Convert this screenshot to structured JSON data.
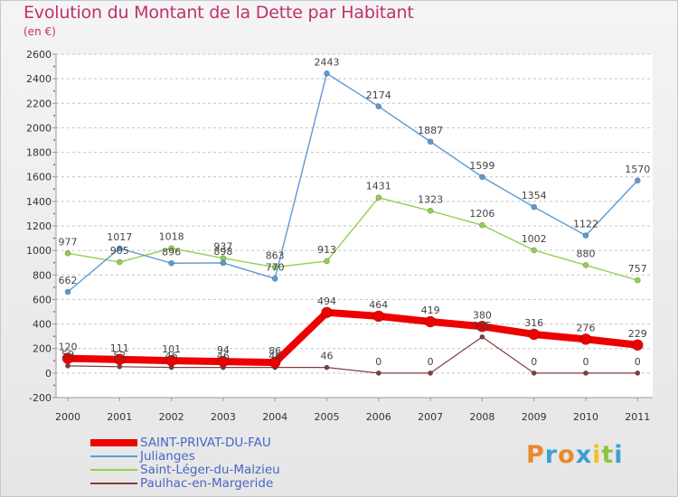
{
  "header": {
    "title": "Evolution du Montant de la Dette par Habitant",
    "unit": "(en €)"
  },
  "brand": {
    "logo_text": "Proxiti",
    "letter_colors": [
      "#e8892a",
      "#3ba0d8",
      "#e8892a",
      "#3ba0d8",
      "#f2c21a",
      "#8bc53f",
      "#3ba0d8"
    ]
  },
  "chart_data": {
    "type": "line",
    "title": "Evolution du Montant de la Dette par Habitant",
    "subtitle": "(en €)",
    "xlabel": "",
    "ylabel": "",
    "x": [
      "2000",
      "2001",
      "2002",
      "2003",
      "2004",
      "2005",
      "2006",
      "2007",
      "2008",
      "2009",
      "2010",
      "2011"
    ],
    "ylim": [
      -200,
      2600
    ],
    "yticks": [
      "-200",
      "0",
      "200",
      "400",
      "600",
      "800",
      "1000",
      "1200",
      "1400",
      "1600",
      "1800",
      "2000",
      "2200",
      "2400",
      "2600"
    ],
    "grid": "horizontal dashed",
    "legend_position": "bottom-left",
    "series": [
      {
        "name": "SAINT-PRIVAT-DU-FAU",
        "color": "#ee0000",
        "values": [
          120,
          111,
          101,
          94,
          86,
          494,
          464,
          419,
          380,
          316,
          276,
          229
        ],
        "labels": [
          "120",
          "111",
          "101",
          "94",
          "86",
          "494",
          "464",
          "419",
          "380",
          "316",
          "276",
          "229"
        ]
      },
      {
        "name": "Julianges",
        "color": "#5b9bd5",
        "values": [
          662,
          1017,
          896,
          898,
          770,
          2443,
          2174,
          1887,
          1599,
          1354,
          1122,
          1570
        ],
        "labels": [
          "662",
          "1017",
          "896",
          "898",
          "770",
          "2443",
          "2174",
          "1887",
          "1599",
          "1354",
          "1122",
          "1570"
        ]
      },
      {
        "name": "Saint-Léger-du-Malzieu",
        "color": "#92d050",
        "values": [
          977,
          905,
          1018,
          937,
          863,
          913,
          1431,
          1323,
          1206,
          1002,
          880,
          757
        ],
        "labels": [
          "977",
          "905",
          "1018",
          "937",
          "863",
          "913",
          "1431",
          "1323",
          "1206",
          "1002",
          "880",
          "757"
        ]
      },
      {
        "name": "Paulhac-en-Margeride",
        "color": "#7f3f3f",
        "values": [
          59,
          52,
          46,
          46,
          46,
          46,
          0,
          0,
          295,
          0,
          0,
          0
        ],
        "labels": [
          "59",
          "52",
          "46",
          "46",
          "46",
          "46",
          "0",
          "0",
          "295",
          "0",
          "0",
          "0"
        ]
      }
    ]
  }
}
